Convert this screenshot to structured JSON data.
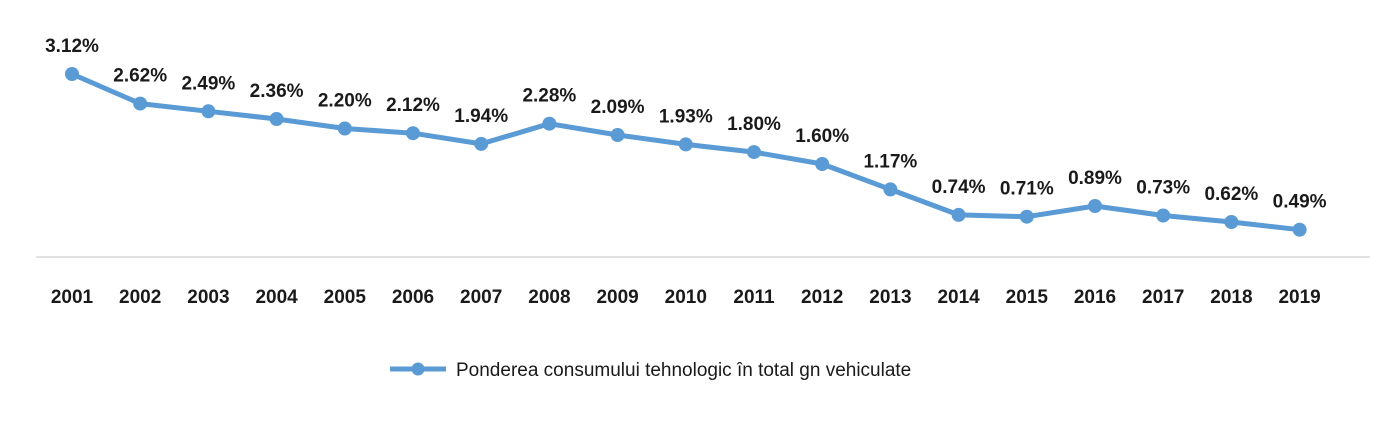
{
  "chart_data": {
    "type": "line",
    "x": [
      "2001",
      "2002",
      "2003",
      "2004",
      "2005",
      "2006",
      "2007",
      "2008",
      "2009",
      "2010",
      "2011",
      "2012",
      "2013",
      "2014",
      "2015",
      "2016",
      "2017",
      "2018",
      "2019"
    ],
    "series": [
      {
        "name": "Ponderea consumului tehnologic în total gn vehiculate",
        "values": [
          3.12,
          2.62,
          2.49,
          2.36,
          2.2,
          2.12,
          1.94,
          2.28,
          2.09,
          1.93,
          1.8,
          1.6,
          1.17,
          0.74,
          0.71,
          0.89,
          0.73,
          0.62,
          0.49
        ],
        "labels": [
          "3.12%",
          "2.62%",
          "2.49%",
          "2.36%",
          "2.20%",
          "2.12%",
          "1.94%",
          "2.28%",
          "2.09%",
          "1.93%",
          "1.80%",
          "1.60%",
          "1.17%",
          "0.74%",
          "0.71%",
          "0.89%",
          "0.73%",
          "0.62%",
          "0.49%"
        ]
      }
    ],
    "title": "",
    "xlabel": "",
    "ylabel": "",
    "ylim": [
      0,
      3.5
    ],
    "grid": false,
    "legend_position": "bottom",
    "colors": {
      "series": "#5b9bd5",
      "text": "#1a1a1a",
      "axis": "#d9d9d9"
    }
  }
}
